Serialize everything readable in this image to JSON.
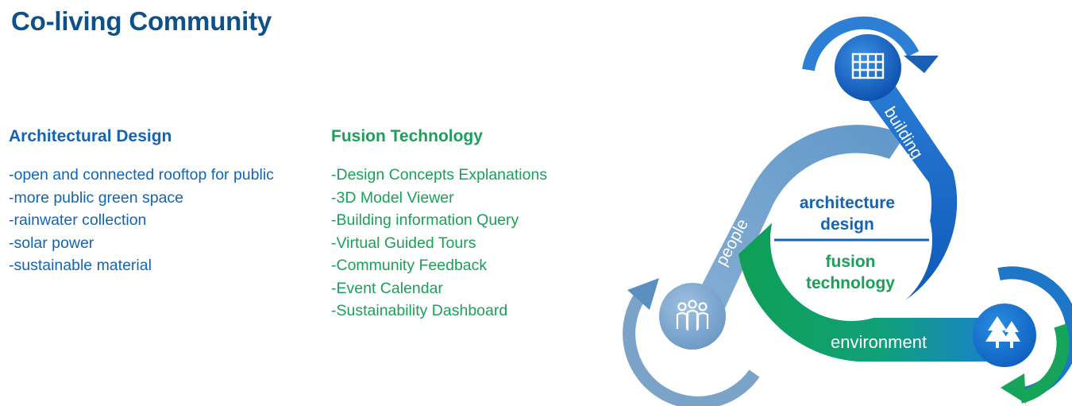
{
  "title": "Co-living Community",
  "architectural": {
    "heading": "Architectural Design",
    "items": [
      "-open and connected rooftop for public",
      "-more public green space",
      "-rainwater collection",
      "-solar power",
      "-sustainable material"
    ]
  },
  "fusion": {
    "heading": "Fusion Technology",
    "items": [
      "-Design Concepts Explanations",
      "-3D Model Viewer",
      "-Building information Query",
      "-Virtual Guided Tours",
      "-Community Feedback",
      "-Event Calendar",
      "-Sustainability Dashboard"
    ]
  },
  "diagram": {
    "center_top_line1": "architecture",
    "center_top_line2": "design",
    "center_bottom_line1": "fusion",
    "center_bottom_line2": "technology",
    "band_building": "building",
    "band_people": "people",
    "band_environment": "environment",
    "node_icons": [
      "building-icon",
      "people-icon",
      "trees-icon"
    ],
    "colors": {
      "building_band": "#1a6fd0",
      "people_band": "#6fa0cc",
      "environment_band": "#14a860",
      "center_text_blue": "#1464b4",
      "center_text_green": "#1aa058",
      "divider": "#1464b4"
    }
  }
}
